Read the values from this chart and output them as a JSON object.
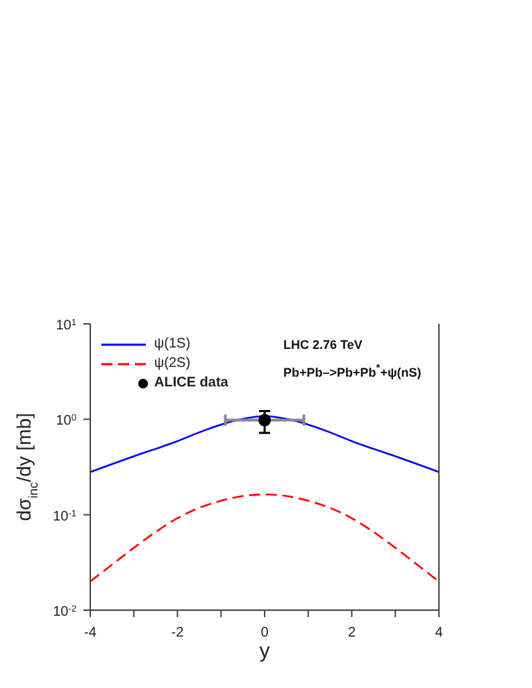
{
  "chart_data": {
    "type": "line",
    "xlabel": "y",
    "ylabel": "dσ$_{inc}$/dy [mb]",
    "annotations": [
      "LHC 2.76 TeV",
      "Pb+Pb–>Pb+Pb$^{*}$+ψ(nS)"
    ],
    "x": [
      -4,
      -3.5,
      -3,
      -2.5,
      -2,
      -1.5,
      -1,
      -0.5,
      0,
      0.5,
      1,
      1.5,
      2,
      2.5,
      3,
      3.5,
      4
    ],
    "series": [
      {
        "name": "ψ(1S)",
        "color": "#0000ff",
        "line_style": "solid",
        "marker": "none",
        "values": [
          0.28,
          0.34,
          0.41,
          0.49,
          0.59,
          0.73,
          0.88,
          1.01,
          1.08,
          1.01,
          0.88,
          0.73,
          0.59,
          0.49,
          0.41,
          0.34,
          0.28
        ]
      },
      {
        "name": "ψ(2S)",
        "color": "#ff0000",
        "line_style": "dashed",
        "marker": "none",
        "values": [
          0.02,
          0.03,
          0.045,
          0.066,
          0.092,
          0.118,
          0.14,
          0.157,
          0.163,
          0.157,
          0.14,
          0.118,
          0.092,
          0.066,
          0.045,
          0.03,
          0.02
        ]
      },
      {
        "name": "ALICE data",
        "type": "scatter",
        "color": "#000000",
        "marker": "circle",
        "x": [
          0
        ],
        "values": [
          0.98
        ],
        "errors": [
          [
            0.72,
            1.22
          ]
        ],
        "xerrors": [
          [
            -0.9,
            0.9
          ]
        ]
      }
    ],
    "log": "y",
    "legend": "top left",
    "grid": false,
    "xlim": [
      -4,
      4
    ],
    "xticks": [
      -4,
      {
        "value": -3,
        "label": null
      },
      -2,
      {
        "value": -1,
        "label": null
      },
      0,
      {
        "value": 1,
        "label": null
      },
      2,
      {
        "value": 3,
        "label": null
      },
      4
    ],
    "ylim": [
      0.01,
      10
    ],
    "yticks": [
      {
        "value": 0.01,
        "label": "10$^{-2}$"
      },
      {
        "value": 0.1,
        "label": "10$^{-1}$"
      },
      {
        "value": 1,
        "label": "10$^{0}$"
      },
      {
        "value": 10,
        "label": "10$^{1}$"
      }
    ]
  }
}
